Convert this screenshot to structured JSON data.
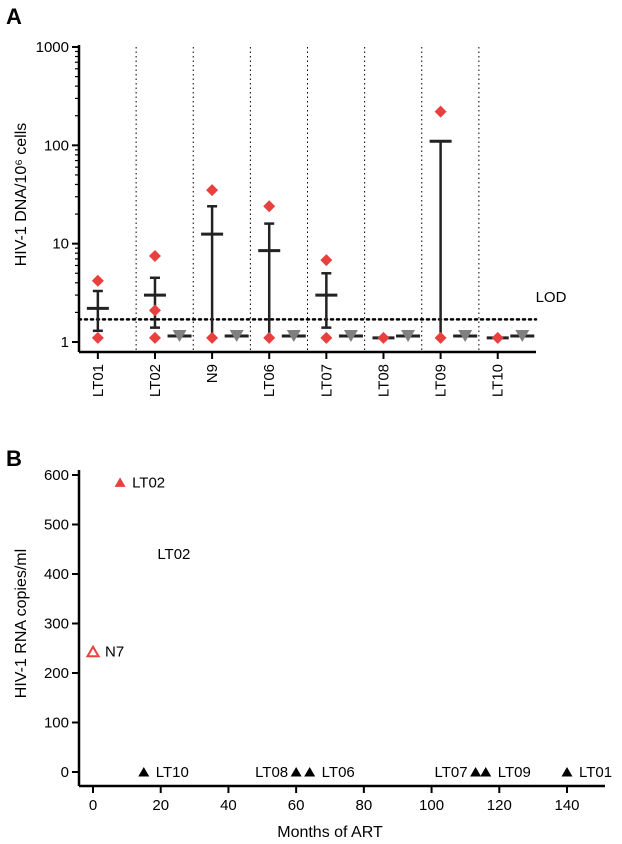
{
  "chart_data": [
    {
      "panel": "A",
      "type": "scatter",
      "ylabel": "HIV-1 DNA/10⁶ cells",
      "yscale": "log",
      "ylim": [
        1,
        1000
      ],
      "yticks": [
        "1",
        "10",
        "100",
        "1000"
      ],
      "lod": {
        "label": "LOD",
        "value": 1.7
      },
      "categories": [
        "LT01",
        "LT02",
        "N9",
        "LT06",
        "LT07",
        "LT08",
        "LT09",
        "LT10"
      ],
      "groups": [
        {
          "name": "LT01",
          "points": [
            4.2,
            1.1
          ],
          "mean": 2.2,
          "err_low": 1.3,
          "err_high": 3.3,
          "gray": false
        },
        {
          "name": "LT02",
          "points": [
            7.5,
            2.1,
            1.1
          ],
          "mean": 3.0,
          "err_low": 1.4,
          "err_high": 4.5,
          "gray": true
        },
        {
          "name": "N9",
          "points": [
            35,
            1.1
          ],
          "mean": 12.5,
          "err_low": 1.1,
          "err_high": 24,
          "gray": true
        },
        {
          "name": "LT06",
          "points": [
            24,
            1.1
          ],
          "mean": 8.5,
          "err_low": 1.1,
          "err_high": 16,
          "gray": true
        },
        {
          "name": "LT07",
          "points": [
            6.8,
            1.1
          ],
          "mean": 3.0,
          "err_low": 1.4,
          "err_high": 5.0,
          "gray": true
        },
        {
          "name": "LT08",
          "points": [
            1.1
          ],
          "mean": 1.1,
          "err_low": 1.1,
          "err_high": 1.1,
          "gray": true
        },
        {
          "name": "LT09",
          "points": [
            220,
            1.1
          ],
          "mean": 110,
          "err_low": 1.1,
          "err_high": 110,
          "gray": true
        },
        {
          "name": "LT10",
          "points": [
            1.1
          ],
          "mean": 1.1,
          "err_low": 1.1,
          "err_high": 1.1,
          "gray": true
        }
      ],
      "gray_value": 1.15,
      "colors": {
        "red": "#e8403f",
        "gray": "#808080",
        "bar": "#222222"
      }
    },
    {
      "panel": "B",
      "type": "scatter",
      "xlabel": "Months of ART",
      "ylabel": "HIV-1 RNA copies/ml",
      "xlim": [
        0,
        140
      ],
      "ylim": [
        0,
        600
      ],
      "xticks": [
        0,
        20,
        40,
        60,
        80,
        100,
        120,
        140
      ],
      "yticks": [
        0,
        100,
        200,
        300,
        400,
        500,
        600
      ],
      "points": [
        {
          "x": 8,
          "y": 585,
          "label": "LT02",
          "marker": "triangle-filled",
          "color": "#e8403f"
        },
        {
          "x": 0,
          "y": 243,
          "label": "N7",
          "marker": "triangle-open",
          "color": "#e8403f"
        },
        {
          "x": 15,
          "y": 0,
          "label": "LT10",
          "marker": "triangle-filled",
          "color": "#000000"
        },
        {
          "x": 60,
          "y": 0,
          "label": "LT08",
          "marker": "triangle-filled",
          "color": "#000000"
        },
        {
          "x": 64,
          "y": 0,
          "label": "LT06",
          "marker": "triangle-filled",
          "color": "#000000"
        },
        {
          "x": 113,
          "y": 0,
          "label": "LT07",
          "marker": "triangle-filled",
          "color": "#000000"
        },
        {
          "x": 116,
          "y": 0,
          "label": "LT09",
          "marker": "triangle-filled",
          "color": "#000000"
        },
        {
          "x": 140,
          "y": 0,
          "label": "LT01",
          "marker": "triangle-filled",
          "color": "#000000"
        }
      ],
      "annotations": [
        {
          "text": "LT02",
          "x": 19,
          "y": 440
        }
      ]
    }
  ]
}
